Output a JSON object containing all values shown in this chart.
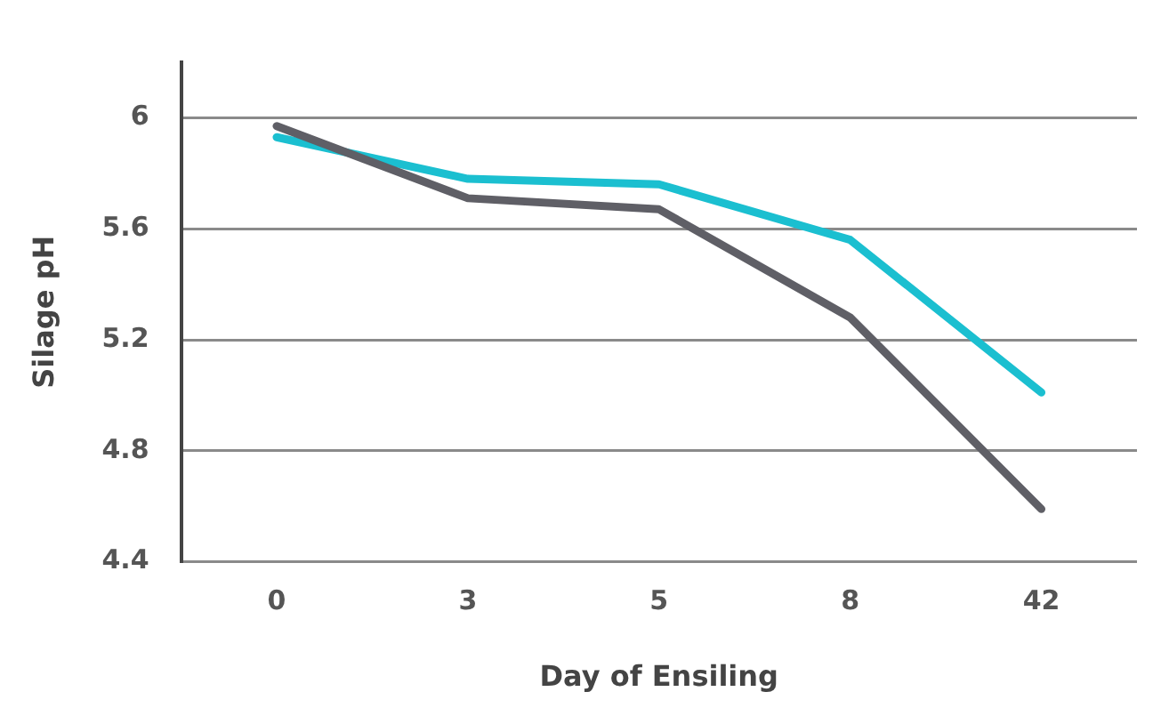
{
  "chart_data": {
    "type": "line",
    "xlabel": "Day of Ensiling",
    "ylabel": "Silage pH",
    "categories": [
      "0",
      "3",
      "5",
      "8",
      "42"
    ],
    "series": [
      {
        "color": "#5f5f66",
        "values": [
          5.97,
          5.71,
          5.67,
          5.28,
          4.59
        ]
      },
      {
        "color": "#1bbfd0",
        "values": [
          5.93,
          5.78,
          5.76,
          5.56,
          5.01
        ]
      }
    ],
    "ylim": [
      4.4,
      6.2
    ],
    "yticks": [
      4.4,
      4.8,
      5.2,
      5.6,
      6
    ],
    "grid": "y",
    "legend": false,
    "marker": "none",
    "line_style": "solid"
  }
}
